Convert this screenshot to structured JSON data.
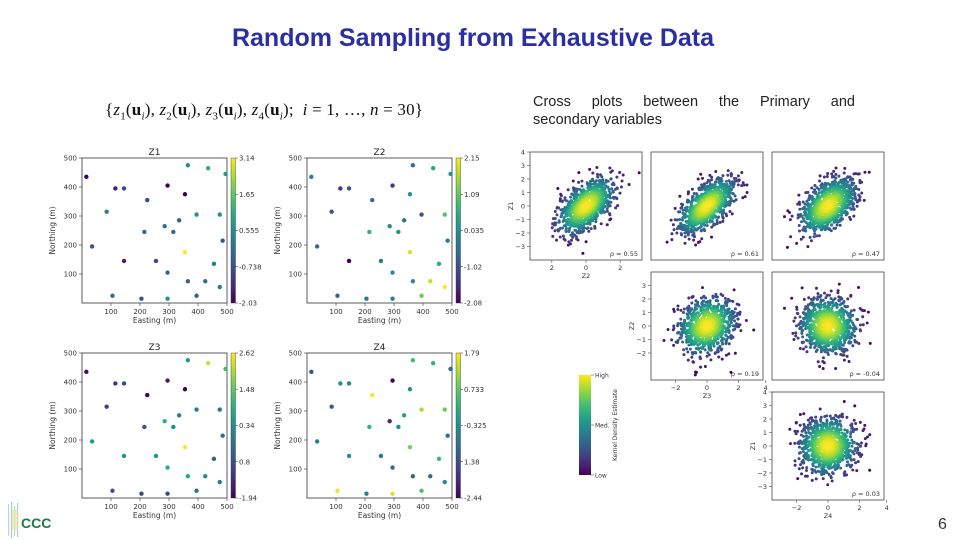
{
  "slide": {
    "title": "Random Sampling from Exhaustive Data",
    "formula": "{z1(ui), z2(ui), z3(ui), z4(ui); i = 1, ..., n = 30}",
    "caption_line1": [
      "Cross",
      "plots",
      "between",
      "the",
      "Primary",
      "and"
    ],
    "caption_line2": "secondary variables",
    "page_number": "6",
    "logo_text": "CCC",
    "title_color": "#2b2fa3"
  },
  "chart_data": [
    {
      "type": "scatter",
      "title": "Z1",
      "xlabel": "Easting (m)",
      "ylabel": "Northing (m)",
      "xlim": [
        0,
        500
      ],
      "ylim": [
        0,
        500
      ],
      "xticks": [
        "100",
        "200",
        "300",
        "400",
        "500"
      ],
      "yticks": [
        "100",
        "200",
        "300",
        "400",
        "500"
      ],
      "colorbar_ticks": [
        "3.14",
        "1.65",
        "0.555",
        "-0.738",
        "-2.03"
      ],
      "colormap": "viridis",
      "points": [
        [
          15,
          435,
          -2.0
        ],
        [
          115,
          395,
          -1.6
        ],
        [
          145,
          395,
          -0.9
        ],
        [
          225,
          355,
          -0.9
        ],
        [
          85,
          315,
          0.3
        ],
        [
          35,
          195,
          -0.7
        ],
        [
          145,
          145,
          -1.6
        ],
        [
          255,
          145,
          -0.9
        ],
        [
          295,
          405,
          -2.0
        ],
        [
          355,
          375,
          -2.0
        ],
        [
          365,
          475,
          0.6
        ],
        [
          435,
          465,
          1.2
        ],
        [
          495,
          445,
          0.8
        ],
        [
          395,
          305,
          0.6
        ],
        [
          475,
          305,
          0.6
        ],
        [
          335,
          285,
          -0.5
        ],
        [
          285,
          265,
          0.0
        ],
        [
          215,
          245,
          -0.3
        ],
        [
          315,
          245,
          -0.2
        ],
        [
          485,
          215,
          -0.6
        ],
        [
          355,
          175,
          3.14
        ],
        [
          455,
          135,
          0.2
        ],
        [
          295,
          105,
          -0.3
        ],
        [
          365,
          75,
          -0.5
        ],
        [
          425,
          75,
          -0.1
        ],
        [
          475,
          55,
          0.2
        ],
        [
          105,
          25,
          -0.1
        ],
        [
          205,
          15,
          -0.7
        ],
        [
          295,
          15,
          0.7
        ],
        [
          395,
          25,
          -0.4
        ]
      ]
    },
    {
      "type": "scatter",
      "title": "Z2",
      "xlabel": "Easting (m)",
      "ylabel": "Northing (m)",
      "xlim": [
        0,
        500
      ],
      "ylim": [
        0,
        500
      ],
      "xticks": [
        "100",
        "200",
        "300",
        "400",
        "500"
      ],
      "yticks": [
        "100",
        "200",
        "300",
        "400",
        "500"
      ],
      "colorbar_ticks": [
        "2.15",
        "1.09",
        "0.035",
        "-1.02",
        "-2.08"
      ],
      "colormap": "viridis",
      "points": [
        [
          15,
          435,
          -0.2
        ],
        [
          115,
          395,
          -1.4
        ],
        [
          145,
          395,
          -1.0
        ],
        [
          225,
          355,
          -0.6
        ],
        [
          85,
          315,
          -1.0
        ],
        [
          35,
          195,
          -0.6
        ],
        [
          145,
          145,
          -2.08
        ],
        [
          255,
          145,
          -0.3
        ],
        [
          295,
          405,
          -1.4
        ],
        [
          355,
          375,
          0.1
        ],
        [
          365,
          475,
          -0.5
        ],
        [
          435,
          465,
          0.4
        ],
        [
          495,
          445,
          0.1
        ],
        [
          395,
          305,
          -1.0
        ],
        [
          475,
          305,
          1.0
        ],
        [
          335,
          285,
          -0.5
        ],
        [
          285,
          265,
          -0.1
        ],
        [
          215,
          245,
          0.7
        ],
        [
          315,
          245,
          0.2
        ],
        [
          485,
          215,
          -0.3
        ],
        [
          355,
          175,
          1.9
        ],
        [
          455,
          135,
          0.5
        ],
        [
          295,
          105,
          0.0
        ],
        [
          365,
          75,
          0.0
        ],
        [
          425,
          75,
          1.8
        ],
        [
          475,
          55,
          2.15
        ],
        [
          105,
          25,
          -0.8
        ],
        [
          205,
          15,
          -0.3
        ],
        [
          295,
          15,
          -0.2
        ],
        [
          395,
          25,
          1.2
        ]
      ]
    },
    {
      "type": "scatter",
      "title": "Z3",
      "xlabel": "Easting (m)",
      "ylabel": "Northing (m)",
      "xlim": [
        0,
        500
      ],
      "ylim": [
        0,
        500
      ],
      "xticks": [
        "100",
        "200",
        "300",
        "400",
        "500"
      ],
      "yticks": [
        "100",
        "200",
        "300",
        "400",
        "500"
      ],
      "colorbar_ticks": [
        "2.62",
        "1.48",
        "0.34",
        "0.8",
        "-1.94"
      ],
      "colormap": "viridis",
      "points": [
        [
          15,
          435,
          -1.8
        ],
        [
          115,
          395,
          -1.2
        ],
        [
          145,
          395,
          -0.9
        ],
        [
          225,
          355,
          -1.9
        ],
        [
          85,
          315,
          -1.1
        ],
        [
          35,
          195,
          0.6
        ],
        [
          145,
          145,
          0.4
        ],
        [
          255,
          145,
          0.5
        ],
        [
          295,
          405,
          -1.6
        ],
        [
          355,
          375,
          -1.94
        ],
        [
          365,
          475,
          0.5
        ],
        [
          435,
          465,
          2.3
        ],
        [
          495,
          445,
          1.2
        ],
        [
          395,
          305,
          0.0
        ],
        [
          475,
          305,
          -0.2
        ],
        [
          335,
          285,
          0.0
        ],
        [
          285,
          265,
          1.0
        ],
        [
          215,
          245,
          -0.8
        ],
        [
          315,
          245,
          0.3
        ],
        [
          485,
          215,
          -0.3
        ],
        [
          355,
          175,
          2.62
        ],
        [
          455,
          135,
          -0.6
        ],
        [
          295,
          105,
          0.9
        ],
        [
          365,
          75,
          0.8
        ],
        [
          425,
          75,
          0.3
        ],
        [
          475,
          55,
          -0.1
        ],
        [
          105,
          25,
          -0.8
        ],
        [
          205,
          15,
          -1.0
        ],
        [
          295,
          15,
          -0.9
        ],
        [
          395,
          25,
          -0.2
        ]
      ]
    },
    {
      "type": "scatter",
      "title": "Z4",
      "xlabel": "Easting (m)",
      "ylabel": "Northing (m)",
      "xlim": [
        0,
        500
      ],
      "ylim": [
        0,
        500
      ],
      "xticks": [
        "100",
        "200",
        "300",
        "400",
        "500"
      ],
      "yticks": [
        "100",
        "200",
        "300",
        "400",
        "500"
      ],
      "colorbar_ticks": [
        "1.79",
        "0.733",
        "-0.325",
        "1.38",
        "-2.44"
      ],
      "colormap": "viridis",
      "points": [
        [
          15,
          435,
          -1.3
        ],
        [
          115,
          395,
          -0.4
        ],
        [
          145,
          395,
          -0.5
        ],
        [
          225,
          355,
          1.79
        ],
        [
          85,
          315,
          -1.2
        ],
        [
          35,
          195,
          -0.6
        ],
        [
          145,
          145,
          -0.3
        ],
        [
          255,
          145,
          -0.7
        ],
        [
          295,
          405,
          -2.44
        ],
        [
          355,
          375,
          -0.3
        ],
        [
          365,
          475,
          0.5
        ],
        [
          435,
          465,
          0.3
        ],
        [
          495,
          445,
          -1.0
        ],
        [
          395,
          305,
          1.2
        ],
        [
          475,
          305,
          0.8
        ],
        [
          335,
          285,
          0.0
        ],
        [
          285,
          265,
          -2.0
        ],
        [
          215,
          245,
          0.3
        ],
        [
          315,
          245,
          -0.4
        ],
        [
          485,
          215,
          -0.8
        ],
        [
          355,
          175,
          0.9
        ],
        [
          455,
          135,
          0.4
        ],
        [
          295,
          105,
          -1.0
        ],
        [
          365,
          75,
          -1.1
        ],
        [
          425,
          75,
          -1.0
        ],
        [
          475,
          55,
          -0.4
        ],
        [
          105,
          25,
          1.7
        ],
        [
          205,
          15,
          -0.6
        ],
        [
          295,
          15,
          1.6
        ],
        [
          395,
          25,
          0.6
        ]
      ]
    },
    {
      "type": "scatter",
      "title": "Z1 vs Z2 (cross plot matrix)",
      "panels": [
        {
          "x": "Z2",
          "y": "Z1",
          "rho": "ρ = 0.55",
          "rho_value": 0.55
        },
        {
          "x": "Z3",
          "y": "Z1",
          "rho": "ρ = 0.61",
          "rho_value": 0.61
        },
        {
          "x": "Z4",
          "y": "Z1",
          "rho": "ρ = 0.47",
          "rho_value": 0.47
        },
        {
          "x": "Z3",
          "y": "Z2",
          "rho": "ρ = 0.19",
          "rho_value": 0.19
        },
        {
          "x": "Z4",
          "y": "Z2",
          "rho": "ρ = -0.04",
          "rho_value": -0.04
        },
        {
          "x": "Z4",
          "y": "Z3",
          "rho": "ρ = 0.03",
          "rho_value": 0.03
        }
      ],
      "axis_labels": {
        "z1": "Z1",
        "z2": "Z2",
        "z3": "Z3",
        "z4": "Z4"
      },
      "yticks_z1": [
        "4",
        "3",
        "2",
        "1",
        "0",
        "−1",
        "−2",
        "−3"
      ],
      "xticks_z2": [
        "2",
        "0",
        "2"
      ],
      "yticks_z2": [
        "3",
        "2",
        "1",
        "0",
        "−1",
        "−2"
      ],
      "xticks_z3": [
        "−2",
        "0",
        "2",
        "4"
      ],
      "yticks_z3": [
        "4",
        "3",
        "2",
        "1",
        "0",
        "−1",
        "−2",
        "−3"
      ],
      "xticks_z4": [
        "−2",
        "0",
        "2",
        "4"
      ],
      "density_legend": {
        "label": "Kernel Density Estimate",
        "high": "High",
        "med": "Med.",
        "low": "Low"
      }
    }
  ]
}
